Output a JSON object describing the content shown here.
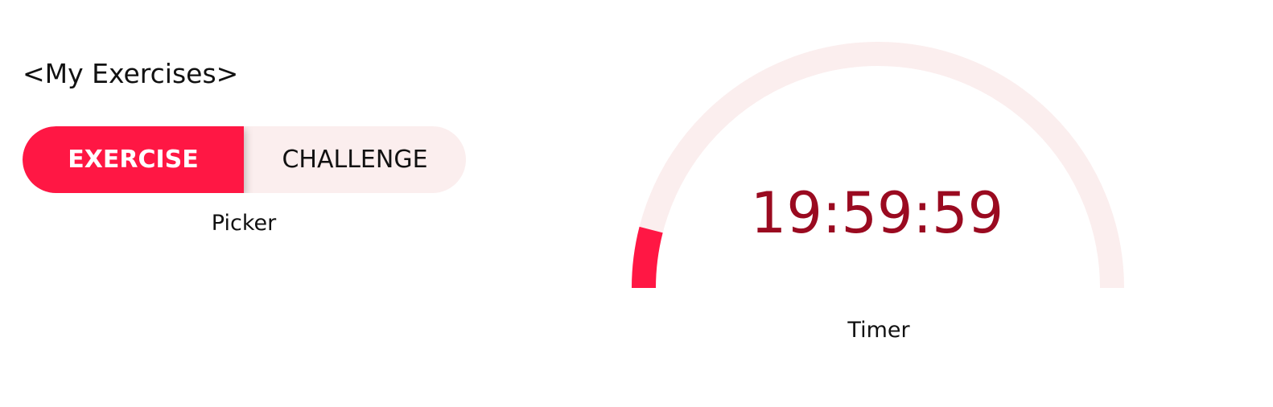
{
  "header": {
    "title": "<My Exercises>"
  },
  "picker": {
    "options": [
      {
        "label": "EXERCISE",
        "selected": true
      },
      {
        "label": "CHALLENGE",
        "selected": false
      }
    ],
    "caption": "Picker"
  },
  "timer": {
    "value": "19:59:59",
    "caption": "Timer",
    "progress": 0.08
  },
  "colors": {
    "accent": "#ff1744",
    "track": "#fbeeee",
    "timer_text": "#9a0a20"
  }
}
